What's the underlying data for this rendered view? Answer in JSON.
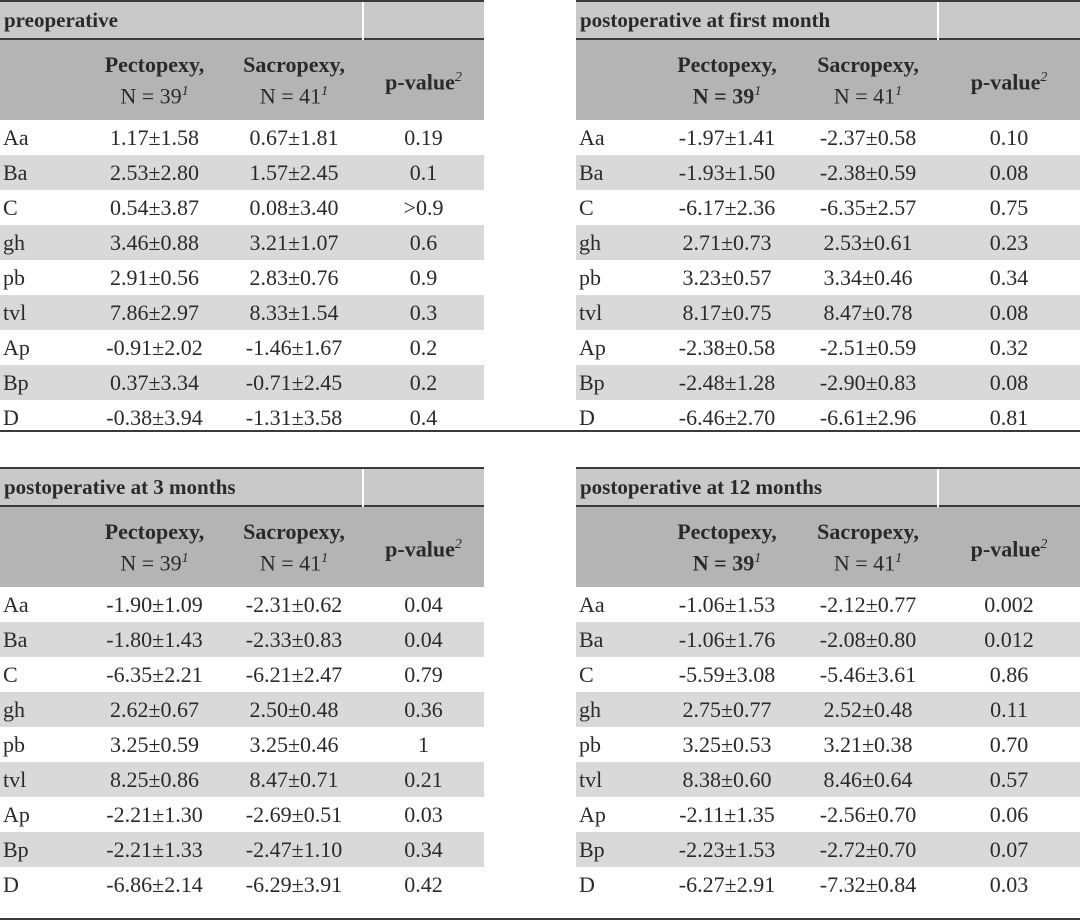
{
  "col_headers": {
    "pectopexy": "Pectopexy,",
    "sacropexy": "Sacropexy,",
    "pectopexy_n": "N = 39",
    "sacropexy_n": "N = 41",
    "footnote_1": "1",
    "pvalue": "p-value",
    "footnote_2": "2"
  },
  "row_labels": [
    "Aa",
    "Ba",
    "C",
    "gh",
    "pb",
    "tvl",
    "Ap",
    "Bp",
    "D"
  ],
  "panels": {
    "preoperative": {
      "title": "preoperative",
      "rows": [
        [
          "1.17±1.58",
          "0.67±1.81",
          "0.19"
        ],
        [
          "2.53±2.80",
          "1.57±2.45",
          "0.1"
        ],
        [
          "0.54±3.87",
          "0.08±3.40",
          ">0.9"
        ],
        [
          "3.46±0.88",
          "3.21±1.07",
          "0.6"
        ],
        [
          "2.91±0.56",
          "2.83±0.76",
          "0.9"
        ],
        [
          "7.86±2.97",
          "8.33±1.54",
          "0.3"
        ],
        [
          "-0.91±2.02",
          "-1.46±1.67",
          "0.2"
        ],
        [
          "0.37±3.34",
          "-0.71±2.45",
          "0.2"
        ],
        [
          "-0.38±3.94",
          "-1.31±3.58",
          "0.4"
        ]
      ]
    },
    "first_month": {
      "title": "postoperative at first month",
      "rows": [
        [
          "-1.97±1.41",
          "-2.37±0.58",
          "0.10"
        ],
        [
          "-1.93±1.50",
          "-2.38±0.59",
          "0.08"
        ],
        [
          "-6.17±2.36",
          "-6.35±2.57",
          "0.75"
        ],
        [
          "2.71±0.73",
          "2.53±0.61",
          "0.23"
        ],
        [
          "3.23±0.57",
          "3.34±0.46",
          "0.34"
        ],
        [
          "8.17±0.75",
          "8.47±0.78",
          "0.08"
        ],
        [
          "-2.38±0.58",
          "-2.51±0.59",
          "0.32"
        ],
        [
          "-2.48±1.28",
          "-2.90±0.83",
          "0.08"
        ],
        [
          "-6.46±2.70",
          "-6.61±2.96",
          "0.81"
        ]
      ]
    },
    "three_months": {
      "title": "postoperative at 3 months",
      "rows": [
        [
          "-1.90±1.09",
          "-2.31±0.62",
          "0.04"
        ],
        [
          "-1.80±1.43",
          "-2.33±0.83",
          "0.04"
        ],
        [
          "-6.35±2.21",
          "-6.21±2.47",
          "0.79"
        ],
        [
          "2.62±0.67",
          "2.50±0.48",
          "0.36"
        ],
        [
          "3.25±0.59",
          "3.25±0.46",
          "1"
        ],
        [
          "8.25±0.86",
          "8.47±0.71",
          "0.21"
        ],
        [
          "-2.21±1.30",
          "-2.69±0.51",
          "0.03"
        ],
        [
          "-2.21±1.33",
          "-2.47±1.10",
          "0.34"
        ],
        [
          "-6.86±2.14",
          "-6.29±3.91",
          "0.42"
        ]
      ]
    },
    "twelve_months": {
      "title": "postoperative at 12 months",
      "rows": [
        [
          "-1.06±1.53",
          "-2.12±0.77",
          "0.002"
        ],
        [
          "-1.06±1.76",
          "-2.08±0.80",
          "0.012"
        ],
        [
          "-5.59±3.08",
          "-5.46±3.61",
          "0.86"
        ],
        [
          "2.75±0.77",
          "2.52±0.48",
          "0.11"
        ],
        [
          "3.25±0.53",
          "3.21±0.38",
          "0.70"
        ],
        [
          "8.38±0.60",
          "8.46±0.64",
          "0.57"
        ],
        [
          "-2.11±1.35",
          "-2.56±0.70",
          "0.06"
        ],
        [
          "-2.23±1.53",
          "-2.72±0.70",
          "0.07"
        ],
        [
          "-6.27±2.91",
          "-7.32±0.84",
          "0.03"
        ]
      ]
    }
  }
}
